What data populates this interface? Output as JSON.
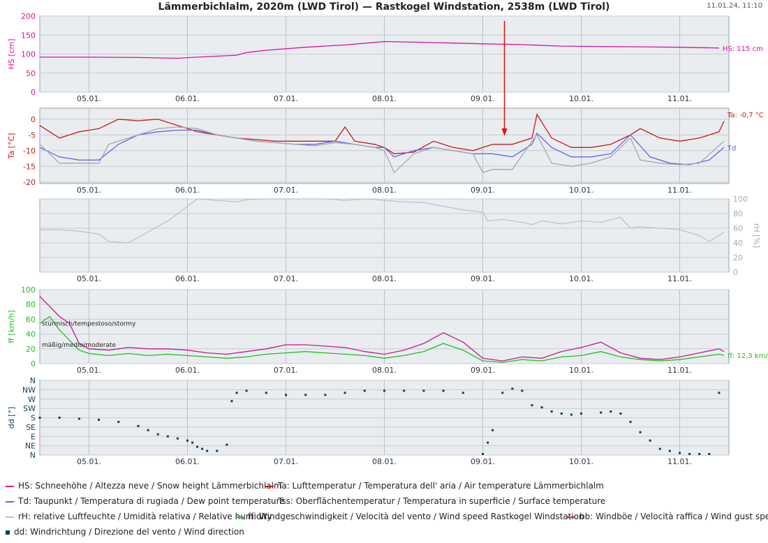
{
  "header": {
    "title": "Lämmerbichlalm, 2020m (LWD Tirol) — Rastkogel Windstation, 2538m (LWD Tirol)",
    "timestamp": "11.01.24, 11:10"
  },
  "colors": {
    "hs": "#e0119a",
    "ta": "#c41a1a",
    "td": "#6464e6",
    "tss": "#a8a8a8",
    "rh": "#c0c0d0",
    "ff": "#1fbf1f",
    "bb": "#c8198c",
    "dd": "#0e3d52",
    "arrow": "#e01010",
    "panel_bg": "#e9edf0"
  },
  "chart_data": [
    {
      "type": "line",
      "panel": "snow",
      "ylabel": "HS [cm]",
      "yticks": [
        "0",
        "50",
        "100",
        "150",
        "200"
      ],
      "ylim": [
        0,
        200
      ],
      "x_ticks": [
        "05.01.",
        "06.01.",
        "07.01.",
        "08.01.",
        "09.01.",
        "10.01.",
        "11.01."
      ],
      "xlim_days": [
        4.5,
        11.5
      ],
      "series": [
        {
          "name": "HS",
          "label": "HS: 115 cm",
          "x": [
            4.5,
            5.0,
            5.5,
            5.9,
            6.1,
            6.5,
            6.6,
            6.8,
            7.2,
            7.6,
            8.0,
            8.4,
            9.0,
            9.4,
            9.8,
            10.2,
            10.6,
            11.0,
            11.4
          ],
          "y": [
            92,
            92,
            91,
            89,
            92,
            97,
            104,
            110,
            118,
            124,
            133,
            131,
            127,
            125,
            121,
            120,
            119,
            118,
            116
          ]
        }
      ]
    },
    {
      "type": "line",
      "panel": "temperature",
      "ylabel": "Ta [°C]",
      "yticks": [
        "-20",
        "-15",
        "-10",
        "-5",
        "0"
      ],
      "ylim": [
        -20.5,
        3.5
      ],
      "series": [
        {
          "name": "Ta",
          "label": "Ta: -0,7 °C",
          "x": [
            4.5,
            4.7,
            4.9,
            5.1,
            5.3,
            5.5,
            5.7,
            5.9,
            6.1,
            6.3,
            6.5,
            6.7,
            6.9,
            7.1,
            7.3,
            7.5,
            7.6,
            7.7,
            7.9,
            8.0,
            8.1,
            8.3,
            8.5,
            8.7,
            8.9,
            9.1,
            9.3,
            9.5,
            9.55,
            9.7,
            9.9,
            10.1,
            10.3,
            10.5,
            10.6,
            10.8,
            11.0,
            11.2,
            11.4,
            11.45
          ],
          "y": [
            -2,
            -6,
            -4,
            -3,
            0,
            -0.5,
            0,
            -2,
            -4,
            -5,
            -6,
            -6.5,
            -7,
            -7,
            -7,
            -7,
            -2.5,
            -7,
            -8,
            -9,
            -11,
            -10.5,
            -7,
            -9,
            -10,
            -8,
            -8,
            -6,
            1.5,
            -6,
            -9,
            -9,
            -8,
            -5,
            -3,
            -6,
            -7,
            -6,
            -4,
            -0.7
          ]
        },
        {
          "name": "Td",
          "label": "Td",
          "x": [
            4.5,
            4.7,
            4.9,
            5.1,
            5.3,
            5.5,
            5.7,
            5.9,
            6.1,
            6.3,
            6.5,
            6.7,
            6.9,
            7.1,
            7.3,
            7.5,
            7.7,
            7.9,
            8.0,
            8.1,
            8.3,
            8.5,
            8.7,
            8.9,
            9.1,
            9.3,
            9.5,
            9.55,
            9.7,
            9.9,
            10.1,
            10.3,
            10.5,
            10.7,
            10.9,
            11.1,
            11.3,
            11.45
          ],
          "y": [
            -9,
            -12,
            -13,
            -13,
            -8,
            -5,
            -4,
            -3.5,
            -3.5,
            -5,
            -6,
            -7,
            -7.5,
            -8,
            -8,
            -7,
            -8,
            -9,
            -9,
            -12,
            -10,
            -9,
            -10,
            -11,
            -11,
            -12,
            -8,
            -4.5,
            -9,
            -12,
            -12,
            -11,
            -5,
            -12,
            -14,
            -14.5,
            -13,
            -9
          ]
        },
        {
          "name": "Tss",
          "x": [
            4.5,
            4.7,
            4.9,
            5.1,
            5.2,
            5.3,
            5.5,
            5.7,
            5.9,
            6.1,
            6.3,
            6.5,
            6.7,
            6.9,
            7.1,
            7.3,
            7.5,
            7.7,
            7.9,
            8.0,
            8.1,
            8.3,
            8.5,
            8.7,
            8.9,
            9.0,
            9.1,
            9.3,
            9.5,
            9.55,
            9.7,
            9.9,
            10.1,
            10.3,
            10.5,
            10.6,
            10.8,
            11.0,
            11.2,
            11.45
          ],
          "y": [
            -8,
            -14,
            -14,
            -14,
            -8,
            -7,
            -5,
            -3,
            -2.5,
            -3,
            -5,
            -6,
            -7,
            -7.5,
            -8,
            -8.5,
            -7.5,
            -8,
            -9,
            -10,
            -17,
            -11,
            -9,
            -10,
            -11,
            -17,
            -16,
            -16,
            -7,
            -5,
            -14,
            -15,
            -14,
            -12,
            -6,
            -13,
            -14,
            -14.5,
            -14,
            -7
          ]
        }
      ]
    },
    {
      "type": "line",
      "panel": "humidity",
      "ylabel": "rH [%]",
      "yticks": [
        "0",
        "20",
        "40",
        "60",
        "80",
        "100"
      ],
      "ylim": [
        0,
        100
      ],
      "series": [
        {
          "name": "rH",
          "x": [
            4.5,
            4.7,
            4.9,
            5.1,
            5.2,
            5.4,
            5.6,
            5.8,
            6.0,
            6.1,
            6.3,
            6.5,
            6.6,
            6.8,
            7.0,
            7.2,
            7.4,
            7.6,
            7.8,
            8.0,
            8.2,
            8.4,
            8.6,
            8.8,
            9.0,
            9.05,
            9.2,
            9.4,
            9.5,
            9.6,
            9.8,
            10.0,
            10.2,
            10.4,
            10.5,
            10.6,
            10.8,
            11.0,
            11.2,
            11.3,
            11.4,
            11.45
          ],
          "y": [
            58,
            58,
            56,
            52,
            42,
            40,
            55,
            70,
            90,
            100,
            98,
            96,
            99,
            100,
            100,
            100,
            100,
            98,
            100,
            98,
            96,
            95,
            90,
            85,
            82,
            70,
            72,
            68,
            65,
            70,
            66,
            70,
            68,
            75,
            60,
            62,
            60,
            58,
            50,
            42,
            50,
            55
          ]
        }
      ]
    },
    {
      "type": "line",
      "panel": "wind",
      "ylabel": "ff [km/h]",
      "yticks": [
        "0",
        "20",
        "40",
        "60",
        "80",
        "100"
      ],
      "ylim": [
        0,
        110
      ],
      "annotations": [
        "stürmisch/tempestoso/stormy",
        "mäßig/medio/moderate"
      ],
      "series": [
        {
          "name": "ff",
          "label": "ff: 12,3 km/h",
          "x": [
            4.5,
            4.6,
            4.7,
            4.8,
            4.9,
            5.0,
            5.2,
            5.4,
            5.6,
            5.8,
            6.0,
            6.2,
            6.4,
            6.6,
            6.8,
            7.0,
            7.2,
            7.4,
            7.6,
            7.8,
            8.0,
            8.2,
            8.4,
            8.6,
            8.8,
            9.0,
            9.2,
            9.4,
            9.6,
            9.8,
            10.0,
            10.2,
            10.4,
            10.6,
            10.8,
            11.0,
            11.2,
            11.4,
            11.45
          ],
          "y": [
            60,
            70,
            50,
            35,
            20,
            15,
            12,
            15,
            12,
            14,
            12,
            10,
            8,
            10,
            14,
            16,
            18,
            16,
            14,
            12,
            8,
            12,
            18,
            30,
            20,
            4,
            2,
            6,
            4,
            10,
            12,
            18,
            10,
            6,
            4,
            6,
            10,
            14,
            12.3
          ]
        },
        {
          "name": "bb",
          "x": [
            4.5,
            4.6,
            4.7,
            4.8,
            4.9,
            5.0,
            5.2,
            5.4,
            5.6,
            5.8,
            6.0,
            6.2,
            6.4,
            6.6,
            6.8,
            7.0,
            7.2,
            7.4,
            7.6,
            7.8,
            8.0,
            8.2,
            8.4,
            8.6,
            8.8,
            9.0,
            9.2,
            9.4,
            9.6,
            9.8,
            10.0,
            10.2,
            10.4,
            10.6,
            10.8,
            11.0,
            11.2,
            11.4,
            11.45
          ],
          "y": [
            100,
            85,
            70,
            60,
            30,
            22,
            20,
            24,
            22,
            22,
            20,
            16,
            14,
            18,
            22,
            28,
            28,
            26,
            24,
            18,
            14,
            20,
            30,
            46,
            32,
            8,
            4,
            10,
            8,
            18,
            24,
            32,
            16,
            8,
            6,
            10,
            16,
            22,
            18
          ]
        }
      ]
    },
    {
      "type": "scatter",
      "panel": "direction",
      "ylabel": "dd [°]",
      "yticks": [
        "N",
        "NE",
        "E",
        "SE",
        "S",
        "SW",
        "W",
        "NW",
        "N"
      ],
      "ylim": [
        0,
        360
      ],
      "series": [
        {
          "name": "dd",
          "x": [
            4.5,
            4.7,
            4.9,
            5.1,
            5.3,
            5.5,
            5.6,
            5.7,
            5.8,
            5.9,
            6.0,
            6.05,
            6.1,
            6.15,
            6.2,
            6.3,
            6.4,
            6.45,
            6.5,
            6.6,
            6.8,
            7.0,
            7.2,
            7.4,
            7.6,
            7.8,
            8.0,
            8.2,
            8.4,
            8.6,
            8.8,
            9.0,
            9.05,
            9.1,
            9.2,
            9.3,
            9.4,
            9.5,
            9.6,
            9.7,
            9.8,
            9.9,
            10.0,
            10.2,
            10.3,
            10.4,
            10.5,
            10.6,
            10.7,
            10.8,
            10.9,
            11.0,
            11.1,
            11.2,
            11.3,
            11.4
          ],
          "y": [
            180,
            180,
            175,
            170,
            160,
            140,
            120,
            100,
            90,
            80,
            70,
            60,
            40,
            30,
            20,
            20,
            50,
            260,
            300,
            310,
            300,
            290,
            290,
            290,
            300,
            310,
            310,
            310,
            310,
            310,
            300,
            5,
            60,
            120,
            300,
            320,
            310,
            240,
            230,
            210,
            200,
            195,
            200,
            205,
            210,
            200,
            160,
            110,
            70,
            30,
            20,
            10,
            5,
            5,
            5,
            300
          ]
        }
      ]
    }
  ],
  "legend": [
    {
      "key": "hs",
      "text": "HS: Schneehöhe / Altezza neve / Snow height  Lämmerbichlalm"
    },
    {
      "key": "ta",
      "text": "Ta: Lufttemperatur / Temperatura dell' aria / Air temperature  Lämmerbichlalm"
    },
    {
      "key": "td",
      "text": "Td: Taupunkt / Temperatura di rugiada / Dew point temperature"
    },
    {
      "key": "tss",
      "text": "Tss: Oberflächentemperatur / Temperatura in superficie / Surface temperature"
    },
    {
      "key": "rh",
      "text": "rH: relative Luftfeuchte / Umidità relativa / Relative humidity"
    },
    {
      "key": "ff",
      "text": "ff: Windgeschwindigkeit / Velocità del vento / Wind speed  Rastkogel Windstation"
    },
    {
      "key": "bb",
      "text": "bb: Windböe / Velocità raffica / Wind gust speed"
    },
    {
      "key": "dd",
      "text": "dd: Windrichtung / Direzione del vento / Wind direction"
    }
  ]
}
